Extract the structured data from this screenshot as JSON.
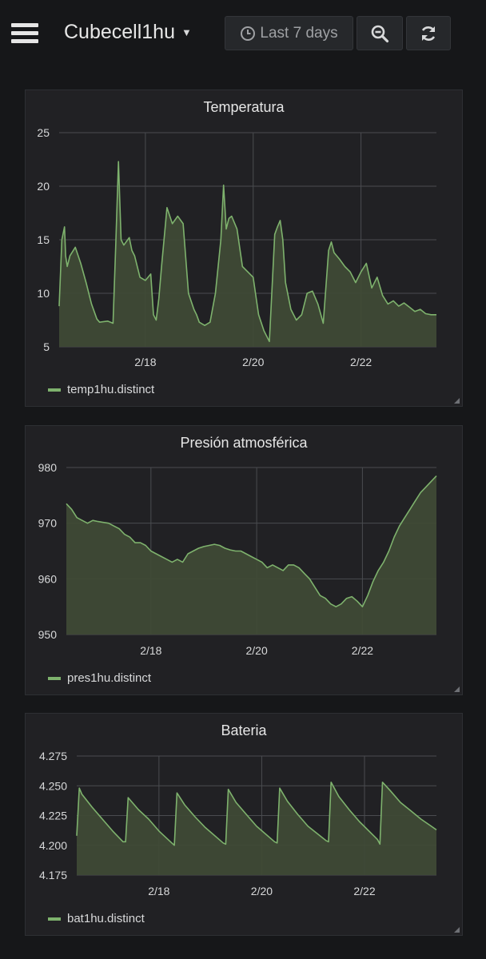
{
  "topbar": {
    "menu_icon": "hamburger-menu-icon",
    "dashboard_title": "Cubecell1hu",
    "caret_icon": "caret-down-icon",
    "time_range_label": "Last 7 days",
    "clock_icon": "clock-icon",
    "zoom_icon": "zoom-out-icon",
    "refresh_icon": "refresh-icon"
  },
  "colors": {
    "background": "#161719",
    "panel": "#212124",
    "series": "#7eb26d",
    "fill": "#3f4a36",
    "grid": "#4a4c50"
  },
  "panels": [
    {
      "title": "Temperatura",
      "legend": "temp1hu.distinct",
      "chart_data": {
        "type": "area",
        "title": "Temperatura",
        "x_ticks": [
          "2/18",
          "2/20",
          "2/22"
        ],
        "y_ticks": [
          "5",
          "10",
          "15",
          "20",
          "25"
        ],
        "ylim": [
          5,
          25
        ],
        "xlim": [
          0,
          7
        ],
        "series": [
          {
            "name": "temp1hu.distinct",
            "x": [
              0,
              0.05,
              0.1,
              0.12,
              0.15,
              0.2,
              0.3,
              0.4,
              0.5,
              0.6,
              0.7,
              0.75,
              0.9,
              1.0,
              1.05,
              1.1,
              1.15,
              1.2,
              1.3,
              1.35,
              1.4,
              1.5,
              1.6,
              1.7,
              1.75,
              1.8,
              1.85,
              1.9,
              2.0,
              2.1,
              2.2,
              2.3,
              2.4,
              2.5,
              2.55,
              2.6,
              2.7,
              2.8,
              2.9,
              3.0,
              3.05,
              3.1,
              3.15,
              3.2,
              3.3,
              3.4,
              3.5,
              3.6,
              3.7,
              3.8,
              3.9,
              4.0,
              4.05,
              4.1,
              4.15,
              4.2,
              4.3,
              4.4,
              4.5,
              4.6,
              4.7,
              4.8,
              4.9,
              5.0,
              5.05,
              5.1,
              5.2,
              5.3,
              5.4,
              5.5,
              5.6,
              5.7,
              5.8,
              5.9,
              6.0,
              6.1,
              6.2,
              6.3,
              6.4,
              6.5,
              6.6,
              6.7,
              6.8,
              6.9,
              7.0
            ],
            "values": [
              8.8,
              15.0,
              16.2,
              13.5,
              12.5,
              13.5,
              14.3,
              12.8,
              11.0,
              9.0,
              7.6,
              7.3,
              7.4,
              7.2,
              14.5,
              22.3,
              15.0,
              14.5,
              15.2,
              14.0,
              13.5,
              11.5,
              11.2,
              11.8,
              8.0,
              7.5,
              9.5,
              12.5,
              18.0,
              16.5,
              17.2,
              16.5,
              10.0,
              8.5,
              8.0,
              7.3,
              7.0,
              7.3,
              10.0,
              15.0,
              20.1,
              16.0,
              17.0,
              17.2,
              16.0,
              12.5,
              12.0,
              11.5,
              8.0,
              6.5,
              5.5,
              15.5,
              16.2,
              16.8,
              15.0,
              11.0,
              8.5,
              7.5,
              8.0,
              10.0,
              10.2,
              9.0,
              7.2,
              14.0,
              14.8,
              13.8,
              13.2,
              12.5,
              12.0,
              11.0,
              12.0,
              12.8,
              10.5,
              11.5,
              9.8,
              9.0,
              9.3,
              8.8,
              9.1,
              8.7,
              8.3,
              8.5,
              8.1,
              8.0,
              8.0
            ]
          }
        ]
      }
    },
    {
      "title": "Presión atmosférica",
      "legend": "pres1hu.distinct",
      "chart_data": {
        "type": "area",
        "title": "Presión atmosférica",
        "x_ticks": [
          "2/18",
          "2/20",
          "2/22"
        ],
        "y_ticks": [
          "950",
          "960",
          "970",
          "980"
        ],
        "ylim": [
          950,
          980
        ],
        "xlim": [
          0,
          7
        ],
        "series": [
          {
            "name": "pres1hu.distinct",
            "x": [
              0,
              0.1,
              0.2,
              0.3,
              0.4,
              0.5,
              0.6,
              0.8,
              0.9,
              1.0,
              1.1,
              1.2,
              1.3,
              1.4,
              1.5,
              1.6,
              1.7,
              1.8,
              1.9,
              2.0,
              2.1,
              2.2,
              2.3,
              2.4,
              2.5,
              2.6,
              2.7,
              2.8,
              2.9,
              3.0,
              3.1,
              3.2,
              3.3,
              3.4,
              3.5,
              3.6,
              3.7,
              3.8,
              3.9,
              4.0,
              4.1,
              4.2,
              4.3,
              4.4,
              4.5,
              4.6,
              4.7,
              4.8,
              4.9,
              5.0,
              5.1,
              5.2,
              5.3,
              5.4,
              5.5,
              5.6,
              5.7,
              5.8,
              5.9,
              6.0,
              6.1,
              6.2,
              6.3,
              6.4,
              6.5,
              6.6,
              6.7,
              6.8,
              6.9,
              7.0
            ],
            "values": [
              973.5,
              972.5,
              971.0,
              970.5,
              970.0,
              970.5,
              970.3,
              970.0,
              969.5,
              969.0,
              968.0,
              967.5,
              966.5,
              966.5,
              966.0,
              965.0,
              964.5,
              964.0,
              963.5,
              963.0,
              963.5,
              963.0,
              964.5,
              965.0,
              965.5,
              965.8,
              966.0,
              966.2,
              966.0,
              965.5,
              965.2,
              965.0,
              965.0,
              964.5,
              964.0,
              963.5,
              963.0,
              962.0,
              962.5,
              962.0,
              961.5,
              962.5,
              962.5,
              962.0,
              961.0,
              960.0,
              958.5,
              957.0,
              956.5,
              955.5,
              955.0,
              955.5,
              956.5,
              956.8,
              956.0,
              955.0,
              957.0,
              959.5,
              961.5,
              963.0,
              965.0,
              967.5,
              969.5,
              971.0,
              972.5,
              974.0,
              975.5,
              976.5,
              977.5,
              978.5
            ]
          }
        ]
      }
    },
    {
      "title": "Bateria",
      "legend": "bat1hu.distinct",
      "chart_data": {
        "type": "area",
        "title": "Bateria",
        "x_ticks": [
          "2/18",
          "2/20",
          "2/22"
        ],
        "y_ticks": [
          "4.175",
          "4.200",
          "4.225",
          "4.250",
          "4.275"
        ],
        "ylim": [
          4.175,
          4.275
        ],
        "xlim": [
          0,
          7
        ],
        "series": [
          {
            "name": "bat1hu.distinct",
            "x": [
              0,
              0.05,
              0.1,
              0.3,
              0.5,
              0.7,
              0.9,
              0.95,
              1.0,
              1.2,
              1.4,
              1.6,
              1.85,
              1.9,
              1.95,
              2.1,
              2.3,
              2.5,
              2.85,
              2.9,
              2.95,
              3.1,
              3.3,
              3.5,
              3.85,
              3.9,
              3.95,
              4.1,
              4.3,
              4.5,
              4.85,
              4.9,
              4.95,
              5.1,
              5.3,
              5.5,
              5.85,
              5.9,
              5.95,
              6.1,
              6.3,
              6.5,
              6.7,
              6.9,
              7.0
            ],
            "values": [
              4.208,
              4.248,
              4.243,
              4.232,
              4.222,
              4.212,
              4.203,
              4.203,
              4.24,
              4.23,
              4.222,
              4.212,
              4.202,
              4.2,
              4.244,
              4.234,
              4.224,
              4.215,
              4.202,
              4.201,
              4.247,
              4.236,
              4.226,
              4.216,
              4.203,
              4.202,
              4.248,
              4.237,
              4.226,
              4.216,
              4.204,
              4.203,
              4.253,
              4.241,
              4.23,
              4.22,
              4.205,
              4.201,
              4.253,
              4.246,
              4.236,
              4.229,
              4.222,
              4.216,
              4.213
            ]
          }
        ]
      }
    }
  ]
}
